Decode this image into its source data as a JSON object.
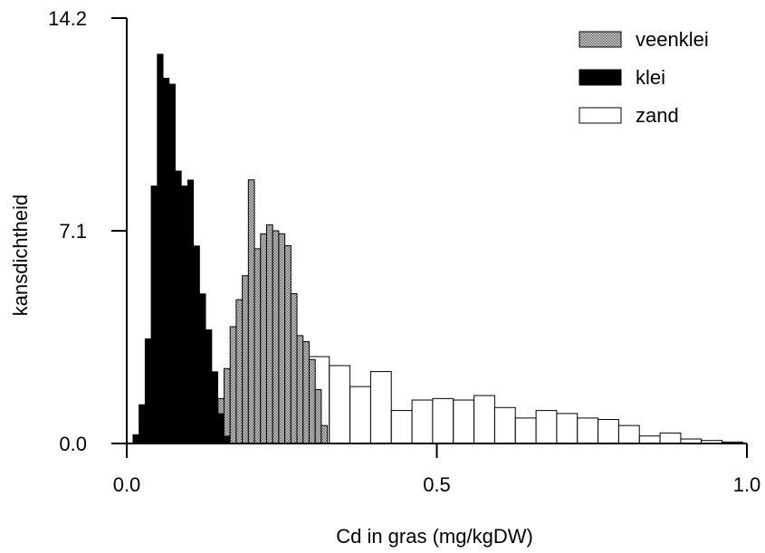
{
  "chart_data": {
    "type": "bar",
    "title": "",
    "xlabel": "Cd in gras (mg/kgDW)",
    "ylabel": "kansdichtheid",
    "xlim": [
      0.0,
      1.0
    ],
    "ylim": [
      0.0,
      14.2
    ],
    "x_ticks": [
      {
        "value": 0.0,
        "label": "0.0"
      },
      {
        "value": 0.5,
        "label": "0.5"
      },
      {
        "value": 1.0,
        "label": "1.0"
      }
    ],
    "y_ticks": [
      {
        "value": 0.0,
        "label": "0.0"
      },
      {
        "value": 7.1,
        "label": "7.1"
      },
      {
        "value": 14.2,
        "label": "14.2"
      }
    ],
    "grid": false,
    "legend_position": "top-right",
    "series": [
      {
        "name": "zand",
        "fill": "#ffffff",
        "pattern": "outline",
        "bin_width": 0.0333,
        "bin_starts": [
          0.1267,
          0.16,
          0.1933,
          0.2267,
          0.26,
          0.2933,
          0.3267,
          0.36,
          0.3933,
          0.4267,
          0.46,
          0.4933,
          0.5267,
          0.56,
          0.5933,
          0.6267,
          0.66,
          0.6933,
          0.7267,
          0.76,
          0.7933,
          0.8267,
          0.86,
          0.8933,
          0.9267,
          0.96
        ],
        "values": [
          0.15,
          0.8,
          1.6,
          2.3,
          2.8,
          2.9,
          2.6,
          1.9,
          2.4,
          1.1,
          1.45,
          1.5,
          1.45,
          1.6,
          1.2,
          0.85,
          1.1,
          1.0,
          0.85,
          0.8,
          0.6,
          0.25,
          0.35,
          0.15,
          0.1,
          0.05
        ]
      },
      {
        "name": "veenklei",
        "fill": "#a8a8a8",
        "pattern": "dotted",
        "bin_width": 0.0098,
        "bin_starts": [
          0.1373,
          0.1471,
          0.1569,
          0.1667,
          0.1765,
          0.1863,
          0.1961,
          0.2059,
          0.2157,
          0.2255,
          0.2353,
          0.2451,
          0.2549,
          0.2647,
          0.2745,
          0.2843,
          0.2941,
          0.3039,
          0.3137
        ],
        "values": [
          0.4,
          1.5,
          2.5,
          3.9,
          4.8,
          5.6,
          8.8,
          6.5,
          7.0,
          7.3,
          7.1,
          7.0,
          6.6,
          5.0,
          3.6,
          3.4,
          2.8,
          1.8,
          0.6
        ]
      },
      {
        "name": "klei",
        "fill": "#000000",
        "pattern": "solid",
        "bin_width": 0.0098,
        "bin_starts": [
          0.0098,
          0.0196,
          0.0294,
          0.0392,
          0.049,
          0.0588,
          0.0686,
          0.0784,
          0.0882,
          0.098,
          0.1078,
          0.1176,
          0.1275,
          0.1373,
          0.1471,
          0.1569
        ],
        "values": [
          0.3,
          1.3,
          3.5,
          8.6,
          13.0,
          12.2,
          12.0,
          9.1,
          8.6,
          8.8,
          6.6,
          5.0,
          3.8,
          2.4,
          1.0,
          0.25
        ]
      }
    ]
  }
}
